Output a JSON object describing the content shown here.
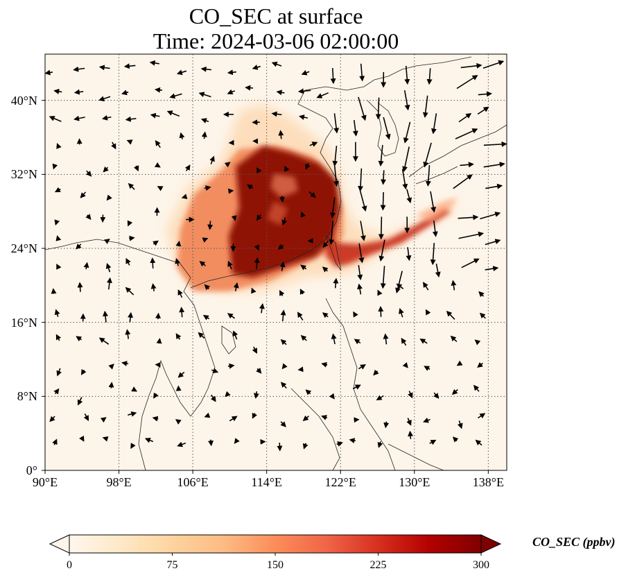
{
  "title_line1": "CO_SEC at surface",
  "title_line2": "Time: 2024-03-06 02:00:00",
  "map": {
    "lon_range": [
      90,
      140
    ],
    "lat_range": [
      0,
      45
    ],
    "lat_ticks": [
      {
        "value": 0,
        "label": "0°"
      },
      {
        "value": 8,
        "label": "8°N"
      },
      {
        "value": 16,
        "label": "16°N"
      },
      {
        "value": 24,
        "label": "24°N"
      },
      {
        "value": 32,
        "label": "32°N"
      },
      {
        "value": 40,
        "label": "40°N"
      }
    ],
    "lon_ticks": [
      {
        "value": 90,
        "label": "90°E"
      },
      {
        "value": 98,
        "label": "98°E"
      },
      {
        "value": 106,
        "label": "106°E"
      },
      {
        "value": 114,
        "label": "114°E"
      },
      {
        "value": 122,
        "label": "122°E"
      },
      {
        "value": 130,
        "label": "130°E"
      },
      {
        "value": 138,
        "label": "138°E"
      }
    ],
    "background_color": "#fdf5ea",
    "gridlines": true
  },
  "colorbar": {
    "label": "CO_SEC (ppbv)",
    "min": 0,
    "max": 300,
    "ticks": [
      "0",
      "75",
      "150",
      "225",
      "300"
    ],
    "colormap": "OrRd",
    "colors": [
      "#fff7ec",
      "#fee8c8",
      "#fdd49e",
      "#fdbb84",
      "#fc8d59",
      "#ef6548",
      "#d7301f",
      "#b30000",
      "#7f0000"
    ],
    "extend": "both"
  }
}
